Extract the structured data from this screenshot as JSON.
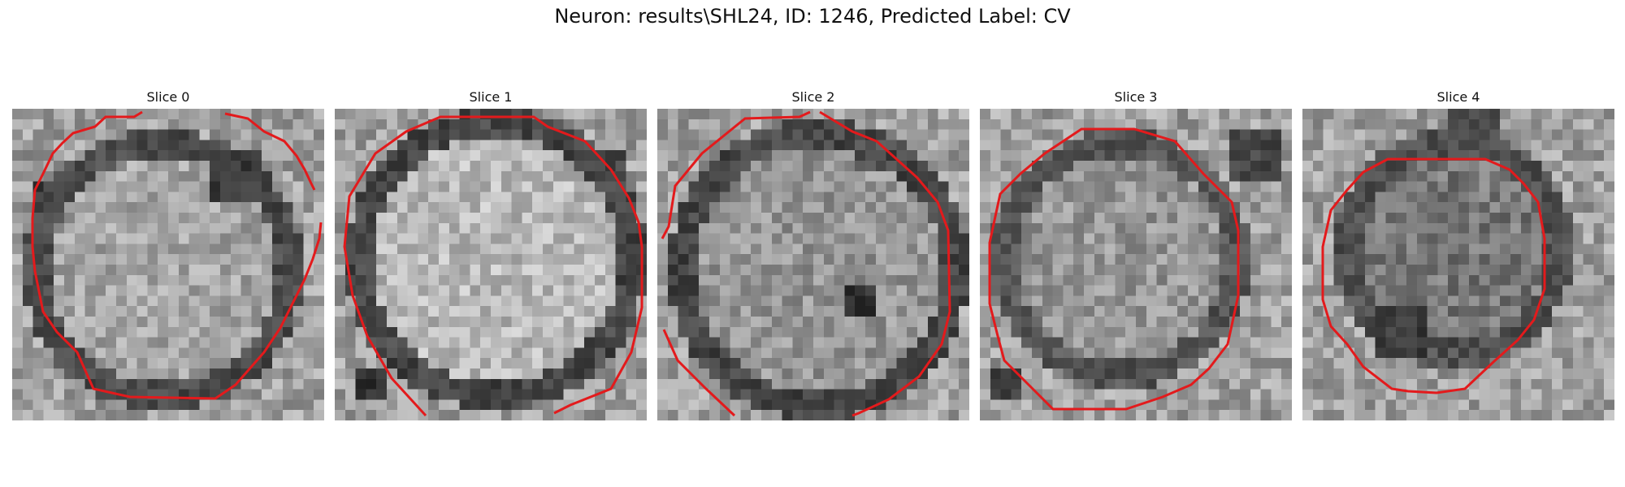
{
  "figure": {
    "title": "Neuron: results\\SHL24, ID: 1246, Predicted Label: CV",
    "contour_color": "#e31a1c",
    "slices": [
      {
        "label": "Slice 0"
      },
      {
        "label": "Slice 1"
      },
      {
        "label": "Slice 2"
      },
      {
        "label": "Slice 3"
      },
      {
        "label": "Slice 4"
      }
    ]
  }
}
